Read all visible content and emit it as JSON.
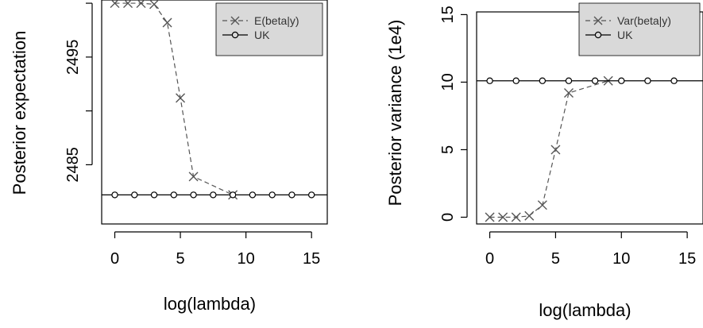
{
  "chart_data": [
    {
      "type": "line",
      "title": "",
      "xlabel": "log(lambda)",
      "ylabel": "Posterior expectation",
      "xlim": [
        -1,
        16.2
      ],
      "ylim": [
        2479.5,
        2500.3
      ],
      "xticks": [
        0,
        5,
        10,
        15
      ],
      "xtick_labels": [
        "0",
        "5",
        "10",
        "15"
      ],
      "yticks": [
        2485,
        2490,
        2495,
        2500
      ],
      "ytick_labels": [
        "2485",
        "",
        "2495",
        ""
      ],
      "legend_position": "top-right",
      "series": [
        {
          "name": "E(beta|y)",
          "style": "dashed-cross",
          "color": "#555555",
          "x": [
            0,
            1,
            2,
            3,
            4,
            5,
            6,
            9
          ],
          "y": [
            2500.0,
            2500.0,
            2500.0,
            2499.9,
            2498.2,
            2491.2,
            2483.9,
            2482.2
          ]
        },
        {
          "name": "UK",
          "style": "solid-circle",
          "color": "#000000",
          "line_y": 2482.2,
          "x": [
            0,
            1.5,
            3,
            4.5,
            6,
            7.5,
            9,
            10.5,
            12,
            13.5,
            15
          ],
          "y": [
            2482.2,
            2482.2,
            2482.2,
            2482.2,
            2482.2,
            2482.2,
            2482.2,
            2482.2,
            2482.2,
            2482.2,
            2482.2
          ]
        }
      ]
    },
    {
      "type": "line",
      "title": "",
      "xlabel": "log(lambda)",
      "ylabel": "Posterior variance (1e4)",
      "xlim": [
        -1,
        16.2
      ],
      "ylim": [
        -0.5,
        15.2
      ],
      "xticks": [
        0,
        5,
        10,
        15
      ],
      "xtick_labels": [
        "0",
        "5",
        "10",
        "15"
      ],
      "yticks": [
        0,
        5,
        10,
        15
      ],
      "ytick_labels": [
        "0",
        "5",
        "10",
        "15"
      ],
      "legend_position": "top-right",
      "series": [
        {
          "name": "Var(beta|y)",
          "style": "dashed-cross",
          "color": "#555555",
          "x": [
            0,
            1,
            2,
            3,
            4,
            5,
            6,
            9
          ],
          "y": [
            0.0,
            0.0,
            0.0,
            0.1,
            0.9,
            5.0,
            9.2,
            10.1
          ]
        },
        {
          "name": "UK",
          "style": "solid-circle",
          "color": "#000000",
          "line_y": 10.1,
          "x": [
            0,
            2,
            4,
            6,
            8,
            10,
            12,
            14
          ],
          "y": [
            10.1,
            10.1,
            10.1,
            10.1,
            10.1,
            10.1,
            10.1,
            10.1
          ]
        }
      ]
    }
  ]
}
